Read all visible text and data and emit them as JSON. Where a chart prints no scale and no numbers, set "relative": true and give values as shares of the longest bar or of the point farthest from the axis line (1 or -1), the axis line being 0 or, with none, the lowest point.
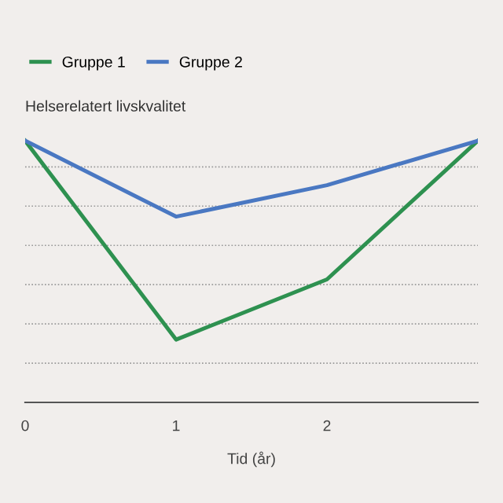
{
  "chart_data": {
    "type": "line",
    "relative": true,
    "ylabel": "Helserelatert livskvalitet",
    "xlabel": "Tid (år)",
    "x": [
      0,
      1,
      2,
      3
    ],
    "xlim": [
      0,
      3
    ],
    "xticks": [
      0,
      1,
      2
    ],
    "series": [
      {
        "name": "Gruppe 1",
        "color": "#2e9150",
        "values": [
          1.0,
          0.24,
          0.47,
          1.0
        ]
      },
      {
        "name": "Gruppe 2",
        "color": "#4a78c2",
        "values": [
          1.0,
          0.71,
          0.83,
          1.0
        ]
      }
    ],
    "grid": "y",
    "legend": "top left",
    "marker": "none",
    "line_style": "solid"
  }
}
